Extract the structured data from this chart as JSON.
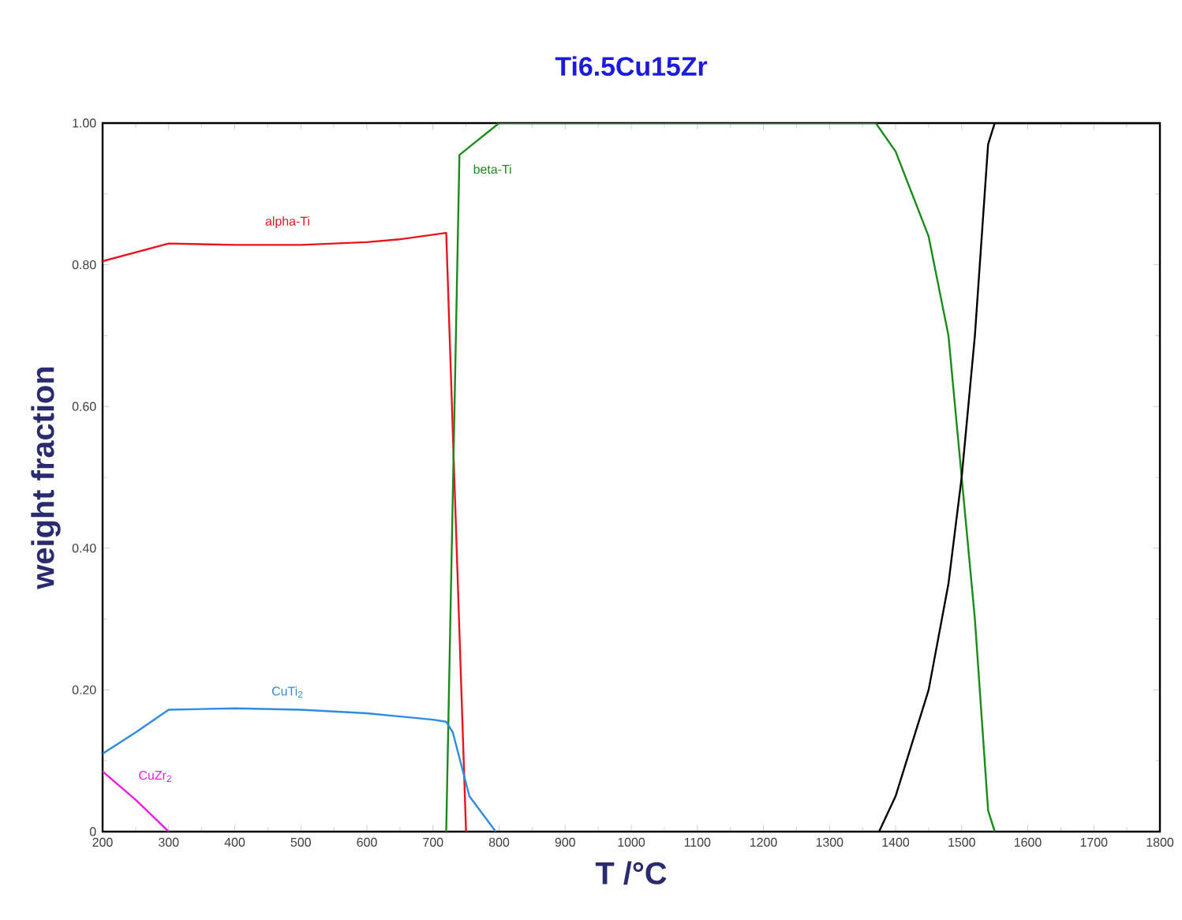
{
  "chart_data": {
    "type": "line",
    "title": "Ti6.5Cu15Zr",
    "xlabel": "T /°C",
    "ylabel": "weight fraction",
    "xlim": [
      200,
      1800
    ],
    "xticks": [
      200,
      300,
      400,
      500,
      600,
      700,
      800,
      900,
      1000,
      1100,
      1200,
      1300,
      1400,
      1500,
      1600,
      1700,
      1800
    ],
    "ylim": [
      0,
      1
    ],
    "yticks": [
      {
        "value": 0,
        "label": "0"
      },
      {
        "value": 0.2,
        "label": "0.20"
      },
      {
        "value": 0.4,
        "label": "0.40"
      },
      {
        "value": 0.6,
        "label": "0.60"
      },
      {
        "value": 0.8,
        "label": "0.80"
      },
      {
        "value": 1,
        "label": "1.00"
      }
    ],
    "marker": "none",
    "line_style": "solid",
    "series": [
      {
        "name": "alpha-Ti",
        "color": "#e8141e",
        "x": [
          200,
          300,
          400,
          500,
          600,
          650,
          720,
          750
        ],
        "values": [
          0.805,
          0.83,
          0.828,
          0.828,
          0.832,
          0.836,
          0.845,
          0
        ]
      },
      {
        "name": "beta-Ti",
        "color": "#1a8a1a",
        "x": [
          720,
          740,
          760,
          800,
          1370,
          1400,
          1450,
          1480,
          1500,
          1520,
          1540,
          1550
        ],
        "values": [
          0,
          0.955,
          0.97,
          1,
          1,
          0.96,
          0.84,
          0.7,
          0.5,
          0.3,
          0.03,
          0
        ]
      },
      {
        "color": "#000000",
        "x": [
          1375,
          1400,
          1450,
          1480,
          1500,
          1520,
          1540,
          1550,
          1800
        ],
        "values": [
          0,
          0.05,
          0.2,
          0.35,
          0.5,
          0.7,
          0.97,
          1,
          1
        ]
      },
      {
        "name": "CuTi$_{2}$",
        "color": "#2e8be0",
        "x": [
          200,
          250,
          300,
          400,
          500,
          600,
          700,
          720,
          730,
          755,
          795
        ],
        "values": [
          0.11,
          0.14,
          0.172,
          0.174,
          0.172,
          0.167,
          0.158,
          0.155,
          0.14,
          0.05,
          0
        ]
      },
      {
        "name": "CuZr$_{2}$",
        "color": "#e81ee0",
        "x": [
          200,
          250,
          300
        ],
        "values": [
          0.085,
          0.045,
          0
        ]
      }
    ]
  }
}
